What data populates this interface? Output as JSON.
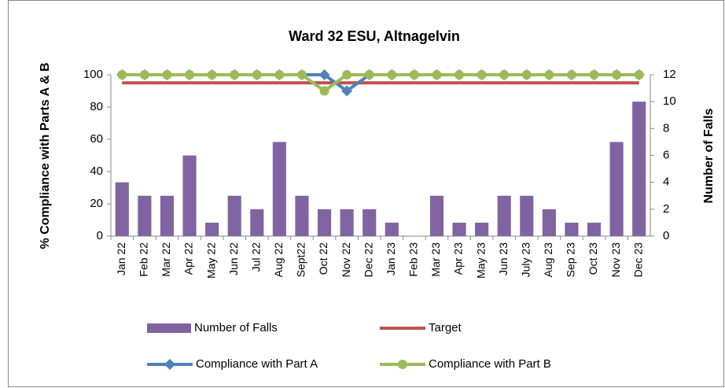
{
  "chart_data": {
    "type": "bar",
    "title": "Ward 32 ESU, Altnagelvin",
    "y_label": "% Compliance with Parts A & B",
    "y2_label": "Number of Falls",
    "categories": [
      "Jan 22",
      "Feb 22",
      "Mar 22",
      "Apr 22",
      "May 22",
      "Jun 22",
      "Jul 22",
      "Aug 22",
      "Sept22",
      "Oct 22",
      "Nov 22",
      "Dec 22",
      "Jan 23",
      "Feb 23",
      "Mar 23",
      "Apr 23",
      "May 23",
      "Jun 23",
      "July 23",
      "Aug 23",
      "Sep 23",
      "Oct 23",
      "Nov 23",
      "Dec 23"
    ],
    "series": [
      {
        "name": "Number of Falls",
        "type": "bar",
        "axis": "y2",
        "color": "#8064a2",
        "values": [
          4,
          3,
          3,
          6,
          1,
          3,
          2,
          7,
          3,
          2,
          2,
          2,
          1,
          0,
          3,
          1,
          1,
          3,
          3,
          2,
          1,
          1,
          7,
          10
        ]
      },
      {
        "name": "Target",
        "type": "line",
        "color": "#c0504d",
        "values": [
          95,
          95,
          95,
          95,
          95,
          95,
          95,
          95,
          95,
          95,
          95,
          95,
          95,
          95,
          95,
          95,
          95,
          95,
          95,
          95,
          95,
          95,
          95,
          95
        ]
      },
      {
        "name": "Compliance with Part A",
        "type": "line",
        "marker": "diamond",
        "color": "#4f81bd",
        "values": [
          100,
          100,
          100,
          100,
          100,
          100,
          100,
          100,
          100,
          100,
          90,
          100,
          100,
          100,
          100,
          100,
          100,
          100,
          100,
          100,
          100,
          100,
          100,
          100
        ]
      },
      {
        "name": "Compliance with Part B",
        "type": "line",
        "marker": "circle",
        "color": "#9bbb59",
        "values": [
          100,
          100,
          100,
          100,
          100,
          100,
          100,
          100,
          100,
          90,
          100,
          100,
          100,
          100,
          100,
          100,
          100,
          100,
          100,
          100,
          100,
          100,
          100,
          100
        ]
      }
    ],
    "ylim": [
      0,
      100
    ],
    "yticks": [
      0,
      20,
      40,
      60,
      80,
      100
    ],
    "y2lim": [
      0,
      12
    ],
    "y2ticks": [
      0,
      2,
      4,
      6,
      8,
      10,
      12
    ]
  }
}
